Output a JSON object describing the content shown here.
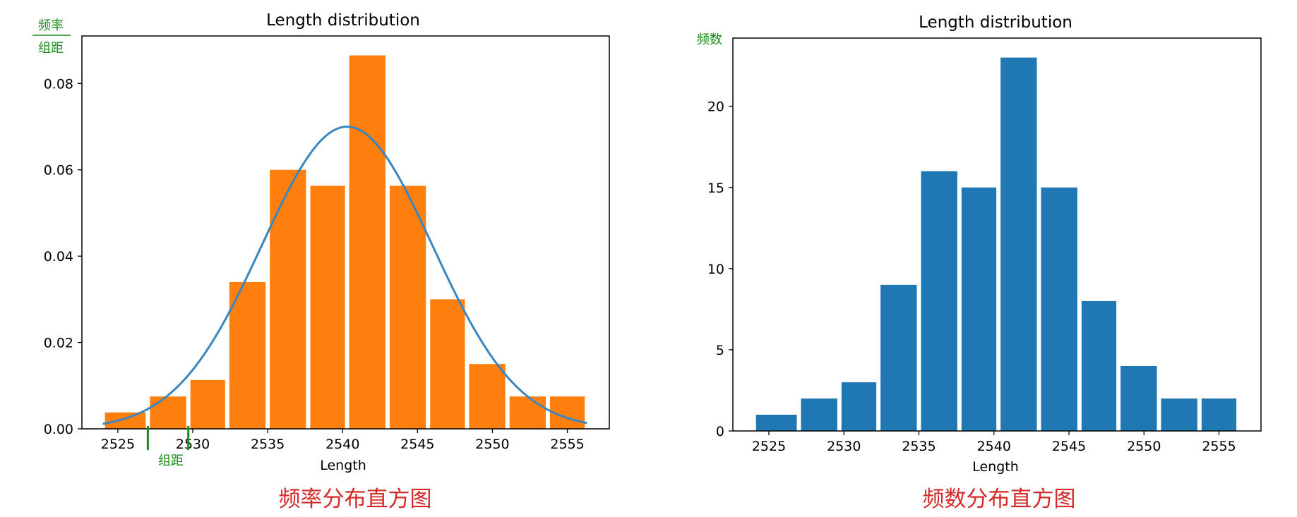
{
  "colors": {
    "freq_bar": "#ff7f0e",
    "count_bar": "#1f77b4",
    "curve": "#3a87bf",
    "annotation": "#1a8a1a",
    "caption": "#d42a2a"
  },
  "chart_data": [
    {
      "type": "bar",
      "title": "Length distribution",
      "xlabel": "Length",
      "ylabel_top": "频率",
      "ylabel_bottom": "组距",
      "bin_width_label": "组距",
      "caption": "频率分布直方图",
      "bins": [
        [
          2524,
          2527
        ],
        [
          2527,
          2529.7
        ],
        [
          2529.7,
          2532.3
        ],
        [
          2532.3,
          2535
        ],
        [
          2535,
          2537.7
        ],
        [
          2537.7,
          2540.3
        ],
        [
          2540.3,
          2543
        ],
        [
          2543,
          2545.7
        ],
        [
          2545.7,
          2548.3
        ],
        [
          2548.3,
          2551
        ],
        [
          2551,
          2553.7
        ],
        [
          2553.7,
          2556.3
        ]
      ],
      "values": [
        0.0038,
        0.0075,
        0.0113,
        0.034,
        0.06,
        0.0563,
        0.0865,
        0.0563,
        0.03,
        0.015,
        0.0075,
        0.0075
      ],
      "curve": {
        "type": "normal",
        "mean": 2540.3,
        "sd": 5.7
      },
      "xticks": [
        2525,
        2530,
        2535,
        2540,
        2545,
        2550,
        2555
      ],
      "xtick_labels": [
        "2525",
        "2530",
        "2535",
        "2540",
        "2545",
        "2550",
        "2555"
      ],
      "yticks": [
        0,
        0.02,
        0.04,
        0.06,
        0.08
      ],
      "ytick_labels": [
        "0.00",
        "0.02",
        "0.04",
        "0.06",
        "0.08"
      ],
      "xlim": [
        2522.6,
        2557.8
      ],
      "ylim": [
        0,
        0.091
      ]
    },
    {
      "type": "bar",
      "title": "Length distribution",
      "xlabel": "Length",
      "ylabel": "频数",
      "caption": "频数分布直方图",
      "bins": [
        [
          2524,
          2527
        ],
        [
          2527,
          2529.7
        ],
        [
          2529.7,
          2532.3
        ],
        [
          2532.3,
          2535
        ],
        [
          2535,
          2537.7
        ],
        [
          2537.7,
          2540.3
        ],
        [
          2540.3,
          2543
        ],
        [
          2543,
          2545.7
        ],
        [
          2545.7,
          2548.3
        ],
        [
          2548.3,
          2551
        ],
        [
          2551,
          2553.7
        ],
        [
          2553.7,
          2556.3
        ]
      ],
      "values": [
        1,
        2,
        3,
        9,
        16,
        15,
        23,
        15,
        8,
        4,
        2,
        2
      ],
      "xticks": [
        2525,
        2530,
        2535,
        2540,
        2545,
        2550,
        2555
      ],
      "xtick_labels": [
        "2525",
        "2530",
        "2535",
        "2540",
        "2545",
        "2550",
        "2555"
      ],
      "yticks": [
        0,
        5,
        10,
        15,
        20
      ],
      "ytick_labels": [
        "0",
        "5",
        "10",
        "15",
        "20"
      ],
      "xlim": [
        2522.6,
        2557.8
      ],
      "ylim": [
        0,
        24.2
      ]
    }
  ]
}
